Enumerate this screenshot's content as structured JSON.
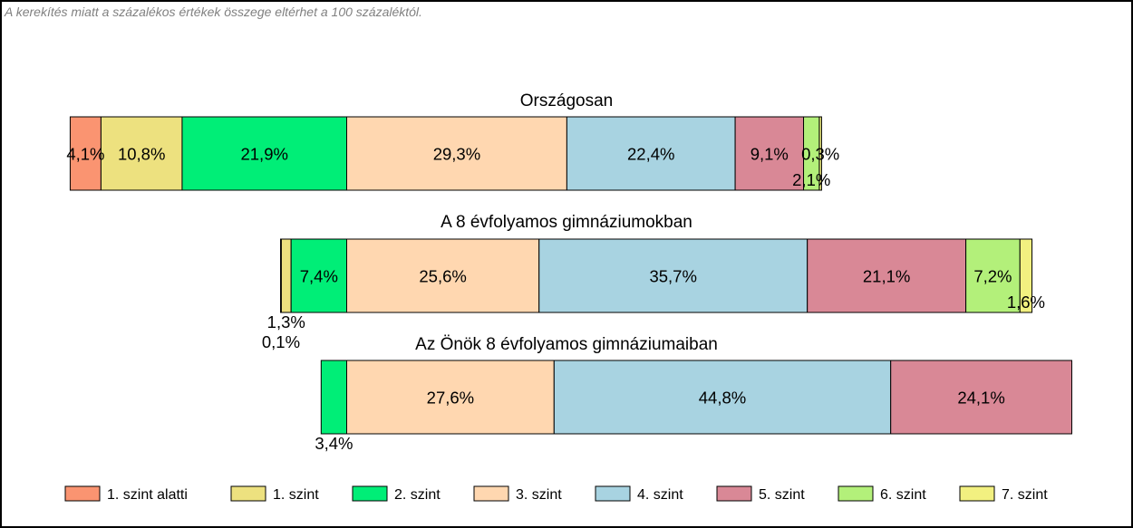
{
  "note": "A kerekítés miatt a  százalékos értékek összege eltérhet a 100 százaléktól.",
  "chart_data": {
    "type": "bar",
    "orientation": "horizontal",
    "stacking": "stacked-diverging",
    "value_unit": "%",
    "categories": [
      "Országosan",
      "A 8 évfolyamos gimnáziumokban",
      "Az Önök 8 évfolyamos gimnáziumaiban"
    ],
    "series": [
      {
        "name": "1. szint alatti",
        "color": "#FA9471",
        "values": [
          4.1,
          0.1,
          0.0
        ],
        "labels": [
          "4,1%",
          "0,1%",
          ""
        ]
      },
      {
        "name": "1. szint",
        "color": "#EDE17F",
        "values": [
          10.8,
          1.3,
          0.0
        ],
        "labels": [
          "10,8%",
          "1,3%",
          ""
        ]
      },
      {
        "name": "2. szint",
        "color": "#00EE77",
        "values": [
          21.9,
          7.4,
          3.4
        ],
        "labels": [
          "21,9%",
          "7,4%",
          "3,4%"
        ]
      },
      {
        "name": "3. szint",
        "color": "#FFD7B0",
        "values": [
          29.3,
          25.6,
          27.6
        ],
        "labels": [
          "29,3%",
          "25,6%",
          "27,6%"
        ]
      },
      {
        "name": "4. szint",
        "color": "#A8D3E1",
        "values": [
          22.4,
          35.7,
          44.8
        ],
        "labels": [
          "22,4%",
          "35,7%",
          "44,8%"
        ]
      },
      {
        "name": "5. szint",
        "color": "#D98896",
        "values": [
          9.1,
          21.1,
          24.1
        ],
        "labels": [
          "9,1%",
          "21,1%",
          "24,1%"
        ]
      },
      {
        "name": "6. szint",
        "color": "#B3F07A",
        "values": [
          2.1,
          7.2,
          0.0
        ],
        "labels": [
          "2,1%",
          "7,2%",
          ""
        ]
      },
      {
        "name": "7. szint",
        "color": "#F2F080",
        "values": [
          0.3,
          1.6,
          0.0
        ],
        "labels": [
          "0,3%",
          "1,6%",
          ""
        ]
      }
    ],
    "legend_position": "bottom",
    "grid": false
  }
}
